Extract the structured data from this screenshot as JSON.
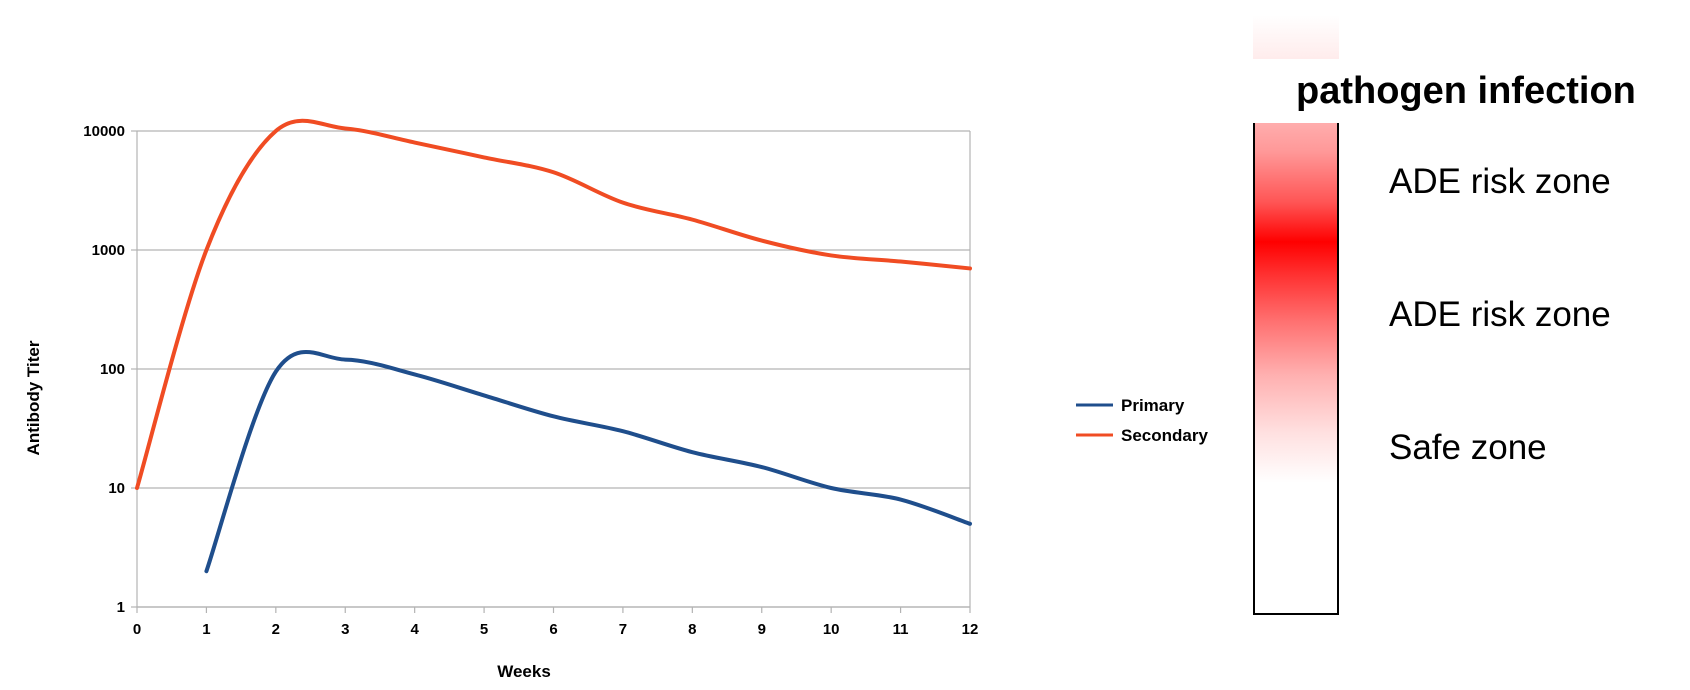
{
  "chart_data": {
    "type": "line",
    "title": "",
    "xlabel": "Weeks",
    "ylabel": "Antibody Titer",
    "yscale": "log",
    "xlim": [
      0,
      12
    ],
    "ylim": [
      1,
      10000
    ],
    "xticks": [
      0,
      1,
      2,
      3,
      4,
      5,
      6,
      7,
      8,
      9,
      10,
      11,
      12
    ],
    "yticks": [
      1,
      10,
      100,
      1000,
      10000
    ],
    "grid": "horizontal",
    "legend_position": "right",
    "series": [
      {
        "name": "Primary",
        "color": "#1f4e8c",
        "x": [
          1,
          2,
          3,
          4,
          5,
          6,
          7,
          8,
          9,
          10,
          11,
          12
        ],
        "values": [
          2,
          95,
          120,
          90,
          60,
          40,
          30,
          20,
          15,
          10,
          8,
          5
        ]
      },
      {
        "name": "Secondary",
        "color": "#f04c23",
        "x": [
          0,
          1,
          2,
          3,
          4,
          5,
          6,
          7,
          8,
          9,
          10,
          11,
          12
        ],
        "values": [
          10,
          1000,
          10000,
          10500,
          8000,
          6000,
          4500,
          2500,
          1800,
          1200,
          900,
          800,
          700
        ]
      }
    ]
  },
  "zone_panel": {
    "title": "pathogen infection",
    "zones": [
      "ADE risk zone",
      "ADE risk zone",
      "Safe zone"
    ]
  }
}
